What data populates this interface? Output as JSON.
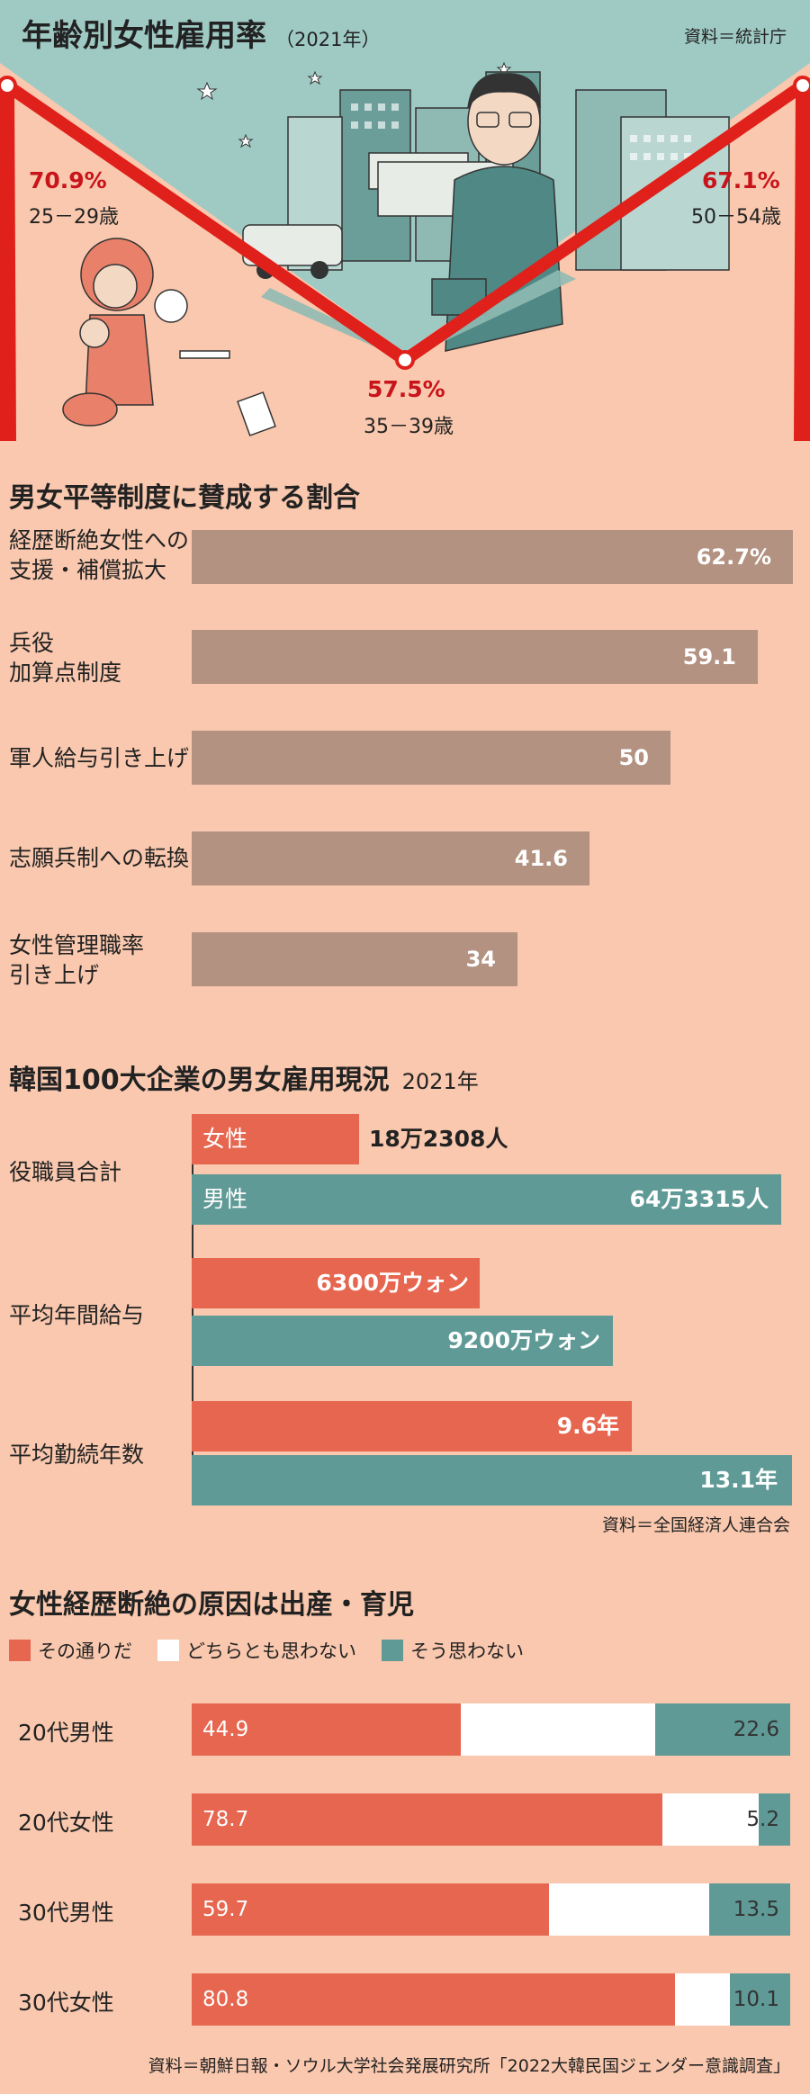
{
  "section1": {
    "title": "年齢別女性雇用率",
    "year": "（2021年）",
    "source": "資料＝統計庁",
    "chart_data": {
      "type": "line",
      "title": "年齢別女性雇用率",
      "x": [
        "25－29歳",
        "35－39歳",
        "50－54歳"
      ],
      "values": [
        70.9,
        57.5,
        67.1
      ],
      "unit": "%"
    },
    "points": [
      {
        "value": "70.9%",
        "age": "25－29歳"
      },
      {
        "value": "57.5%",
        "age": "35－39歳"
      },
      {
        "value": "67.1%",
        "age": "50－54歳"
      }
    ],
    "colors": {
      "line": "#e0201a",
      "accent": "#c8141b",
      "sky": "#9fcac4",
      "illustration_teal": "#5f9a96"
    }
  },
  "section2": {
    "title": "男女平等制度に賛成する割合",
    "chart_data": {
      "type": "bar",
      "orientation": "horizontal",
      "categories": [
        "経歴断絶女性への支援・補償拡大",
        "兵役加算点制度",
        "軍人給与引き上げ",
        "志願兵制への転換",
        "女性管理職率引き上げ"
      ],
      "values": [
        62.7,
        59.1,
        50,
        41.6,
        34
      ],
      "unit": "%"
    },
    "items": [
      {
        "line1": "経歴断絶女性への",
        "line2": "支援・補償拡大",
        "value": "62.7%"
      },
      {
        "line1": "兵役",
        "line2": "加算点制度",
        "value": "59.1"
      },
      {
        "line1": "軍人給与引き上げ",
        "line2": "",
        "value": "50"
      },
      {
        "line1": "志願兵制への転換",
        "line2": "",
        "value": "41.6"
      },
      {
        "line1": "女性管理職率",
        "line2": "引き上げ",
        "value": "34"
      }
    ],
    "colors": {
      "bar": "#b39281"
    }
  },
  "section3": {
    "title": "韓国100大企業の男女雇用現況",
    "year": "2021年",
    "source": "資料＝全国経済人連合会",
    "chart_data": {
      "type": "bar",
      "orientation": "horizontal",
      "categories": [
        "役職員合計",
        "平均年間給与",
        "平均勤続年数"
      ],
      "series": [
        {
          "name": "女性",
          "values": [
            182308,
            6300,
            9.6
          ]
        },
        {
          "name": "男性",
          "values": [
            643315,
            9200,
            13.1
          ]
        }
      ]
    },
    "groups": [
      {
        "category": "役職員合計",
        "female": "18万2308人",
        "male": "64万3315人",
        "female_name": "女性",
        "male_name": "男性"
      },
      {
        "category": "平均年間給与",
        "female": "6300万ウォン",
        "male": "9200万ウォン"
      },
      {
        "category": "平均勤続年数",
        "female": "9.6年",
        "male": "13.1年"
      }
    ],
    "colors": {
      "female": "#e6664f",
      "male": "#5f9a96"
    }
  },
  "section4": {
    "title": "女性経歴断絶の原因は出産・育児",
    "source": "資料＝朝鮮日報・ソウル大学社会発展研究所「2022大韓民国ジェンダー意識調査」",
    "legend": [
      "その通りだ",
      "どちらとも思わない",
      "そう思わない"
    ],
    "chart_data": {
      "type": "bar",
      "orientation": "horizontal",
      "stacked": true,
      "categories": [
        "20代男性",
        "20代女性",
        "30代男性",
        "30代女性"
      ],
      "series": [
        {
          "name": "その通りだ",
          "values": [
            44.9,
            78.7,
            59.7,
            80.8
          ]
        },
        {
          "name": "どちらとも思わない",
          "values": [
            32.5,
            16.1,
            26.8,
            9.1
          ]
        },
        {
          "name": "そう思わない",
          "values": [
            22.6,
            5.2,
            13.5,
            10.1
          ]
        }
      ]
    },
    "rows": [
      {
        "label": "20代男性",
        "agree": "44.9",
        "disagree": "22.6"
      },
      {
        "label": "20代女性",
        "agree": "78.7",
        "disagree": "5.2"
      },
      {
        "label": "30代男性",
        "agree": "59.7",
        "disagree": "13.5"
      },
      {
        "label": "30代女性",
        "agree": "80.8",
        "disagree": "10.1"
      }
    ],
    "colors": {
      "agree": "#e6664f",
      "neither": "#ffffff",
      "disagree": "#5f9a96"
    }
  }
}
